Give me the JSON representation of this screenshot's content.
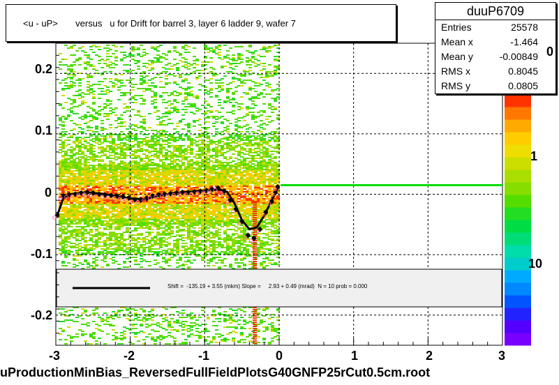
{
  "chart_data": {
    "type": "scatter",
    "title": "<u - uP>       versus   u for Drift for barrel 3, layer 6 ladder 9, wafer 7",
    "xlim": [
      -3,
      3
    ],
    "ylim": [
      -0.25,
      0.25
    ],
    "x_ticks": [
      "-3",
      "-2",
      "-1",
      "0",
      "1",
      "2",
      "3"
    ],
    "y_ticks": [
      "0.2",
      "0.1",
      "0",
      "-0.1",
      "-0.2"
    ],
    "z_ticks": [
      "0",
      "1",
      "10"
    ],
    "grid": true,
    "stats": {
      "name": "duuP6709",
      "rows": [
        {
          "label": "Entries",
          "value": "25578"
        },
        {
          "label": "Mean x",
          "value": "-1.464"
        },
        {
          "label": "Mean y",
          "value": "-0.00849"
        },
        {
          "label": "RMS x",
          "value": "0.8045"
        },
        {
          "label": "RMS y",
          "value": "0.0805"
        }
      ]
    },
    "fit_text": "Shift =  -135.19 + 3.55 (mkm) Slope =     2.93 + 0.49 (mrad)  N = 10 prob = 0.000",
    "profile": {
      "x": [
        -2.98,
        -2.9,
        -2.82,
        -2.74,
        -2.66,
        -2.58,
        -2.5,
        -2.42,
        -2.34,
        -2.26,
        -2.18,
        -2.1,
        -2.02,
        -1.94,
        -1.86,
        -1.78,
        -1.7,
        -1.62,
        -1.54,
        -1.46,
        -1.38,
        -1.3,
        -1.22,
        -1.14,
        -1.06,
        -0.98,
        -0.9,
        -0.82,
        -0.74,
        -0.66,
        -0.58,
        -0.5,
        -0.42,
        -0.34,
        -0.26,
        -0.18,
        -0.1,
        -0.05,
        -0.02
      ],
      "y": [
        -0.035,
        -0.003,
        -0.001,
        0.0,
        0.002,
        0.003,
        0.002,
        0.0,
        -0.001,
        -0.002,
        -0.003,
        -0.004,
        -0.006,
        -0.009,
        -0.01,
        -0.007,
        -0.003,
        -0.001,
        0.0,
        0.001,
        0.002,
        0.003,
        0.003,
        0.004,
        0.005,
        0.006,
        0.008,
        0.01,
        0.005,
        -0.01,
        -0.025,
        -0.045,
        -0.068,
        -0.073,
        -0.058,
        -0.03,
        -0.012,
        0.003,
        0.012
      ]
    },
    "fit_curve": {
      "x": [
        -2.98,
        -2.9,
        -2.8,
        -2.6,
        -2.4,
        -2.2,
        -2.0,
        -1.8,
        -1.6,
        -1.4,
        -1.2,
        -1.0,
        -0.8,
        -0.7,
        -0.6,
        -0.5,
        -0.4,
        -0.3,
        -0.2,
        -0.1,
        -0.02
      ],
      "y": [
        -0.035,
        -0.006,
        0.0,
        0.003,
        0.001,
        -0.003,
        -0.007,
        -0.008,
        -0.002,
        0.002,
        0.004,
        0.006,
        0.008,
        0.004,
        -0.015,
        -0.043,
        -0.058,
        -0.055,
        -0.035,
        -0.01,
        0.01
      ]
    },
    "hline": {
      "x": [
        0.02,
        3.0
      ],
      "y": 0.015
    }
  }
}
